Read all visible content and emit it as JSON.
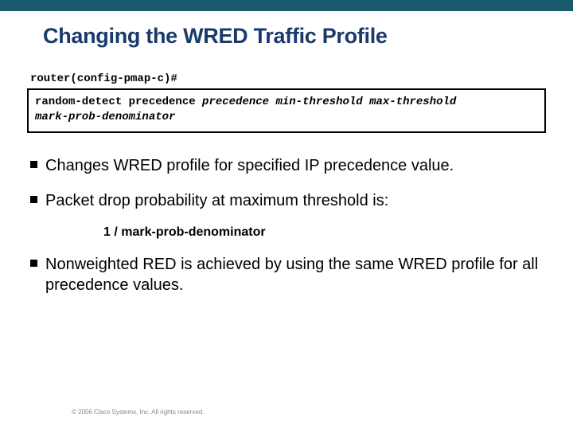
{
  "colors": {
    "top_bar": "#1a5a6e",
    "title": "#193a6b",
    "text": "#000000",
    "footer": "#888888",
    "box_border": "#000000",
    "background": "#ffffff"
  },
  "title": "Changing the WRED Traffic Profile",
  "prompt": "router(config-pmap-c)#",
  "code": {
    "line1_plain": "random-detect precedence ",
    "line1_italic": "precedence min-threshold max-threshold",
    "line2_italic": "mark-prob-denominator"
  },
  "bullets": {
    "b1": "Changes WRED profile for specified IP precedence value.",
    "b2": "Packet drop probability at maximum threshold is:",
    "b2_sub": "1 / mark-prob-denominator",
    "b3": "Nonweighted RED is achieved by using the same WRED profile for all precedence values."
  },
  "footer": "© 2006 Cisco Systems, Inc. All rights reserved."
}
